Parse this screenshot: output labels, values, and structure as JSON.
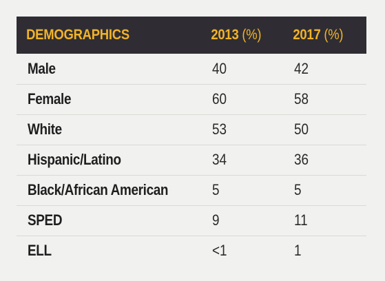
{
  "header": {
    "title": "DEMOGRAPHICS",
    "col1_year": "2013",
    "col1_unit": "(%)",
    "col2_year": "2017",
    "col2_unit": "(%)"
  },
  "rows": [
    {
      "label": "Male",
      "v2013": "40",
      "v2017": "42"
    },
    {
      "label": "Female",
      "v2013": "60",
      "v2017": "58"
    },
    {
      "label": "White",
      "v2013": "53",
      "v2017": "50"
    },
    {
      "label": "Hispanic/Latino",
      "v2013": "34",
      "v2017": "36"
    },
    {
      "label": "Black/African American",
      "v2013": "5",
      "v2017": "5"
    },
    {
      "label": "SPED",
      "v2013": "9",
      "v2017": "11"
    },
    {
      "label": "ELL",
      "v2013": "<1",
      "v2017": "1"
    }
  ],
  "colors": {
    "header_bg": "#2f2d33",
    "header_text": "#f2b328",
    "page_bg": "#f1f1ef"
  }
}
